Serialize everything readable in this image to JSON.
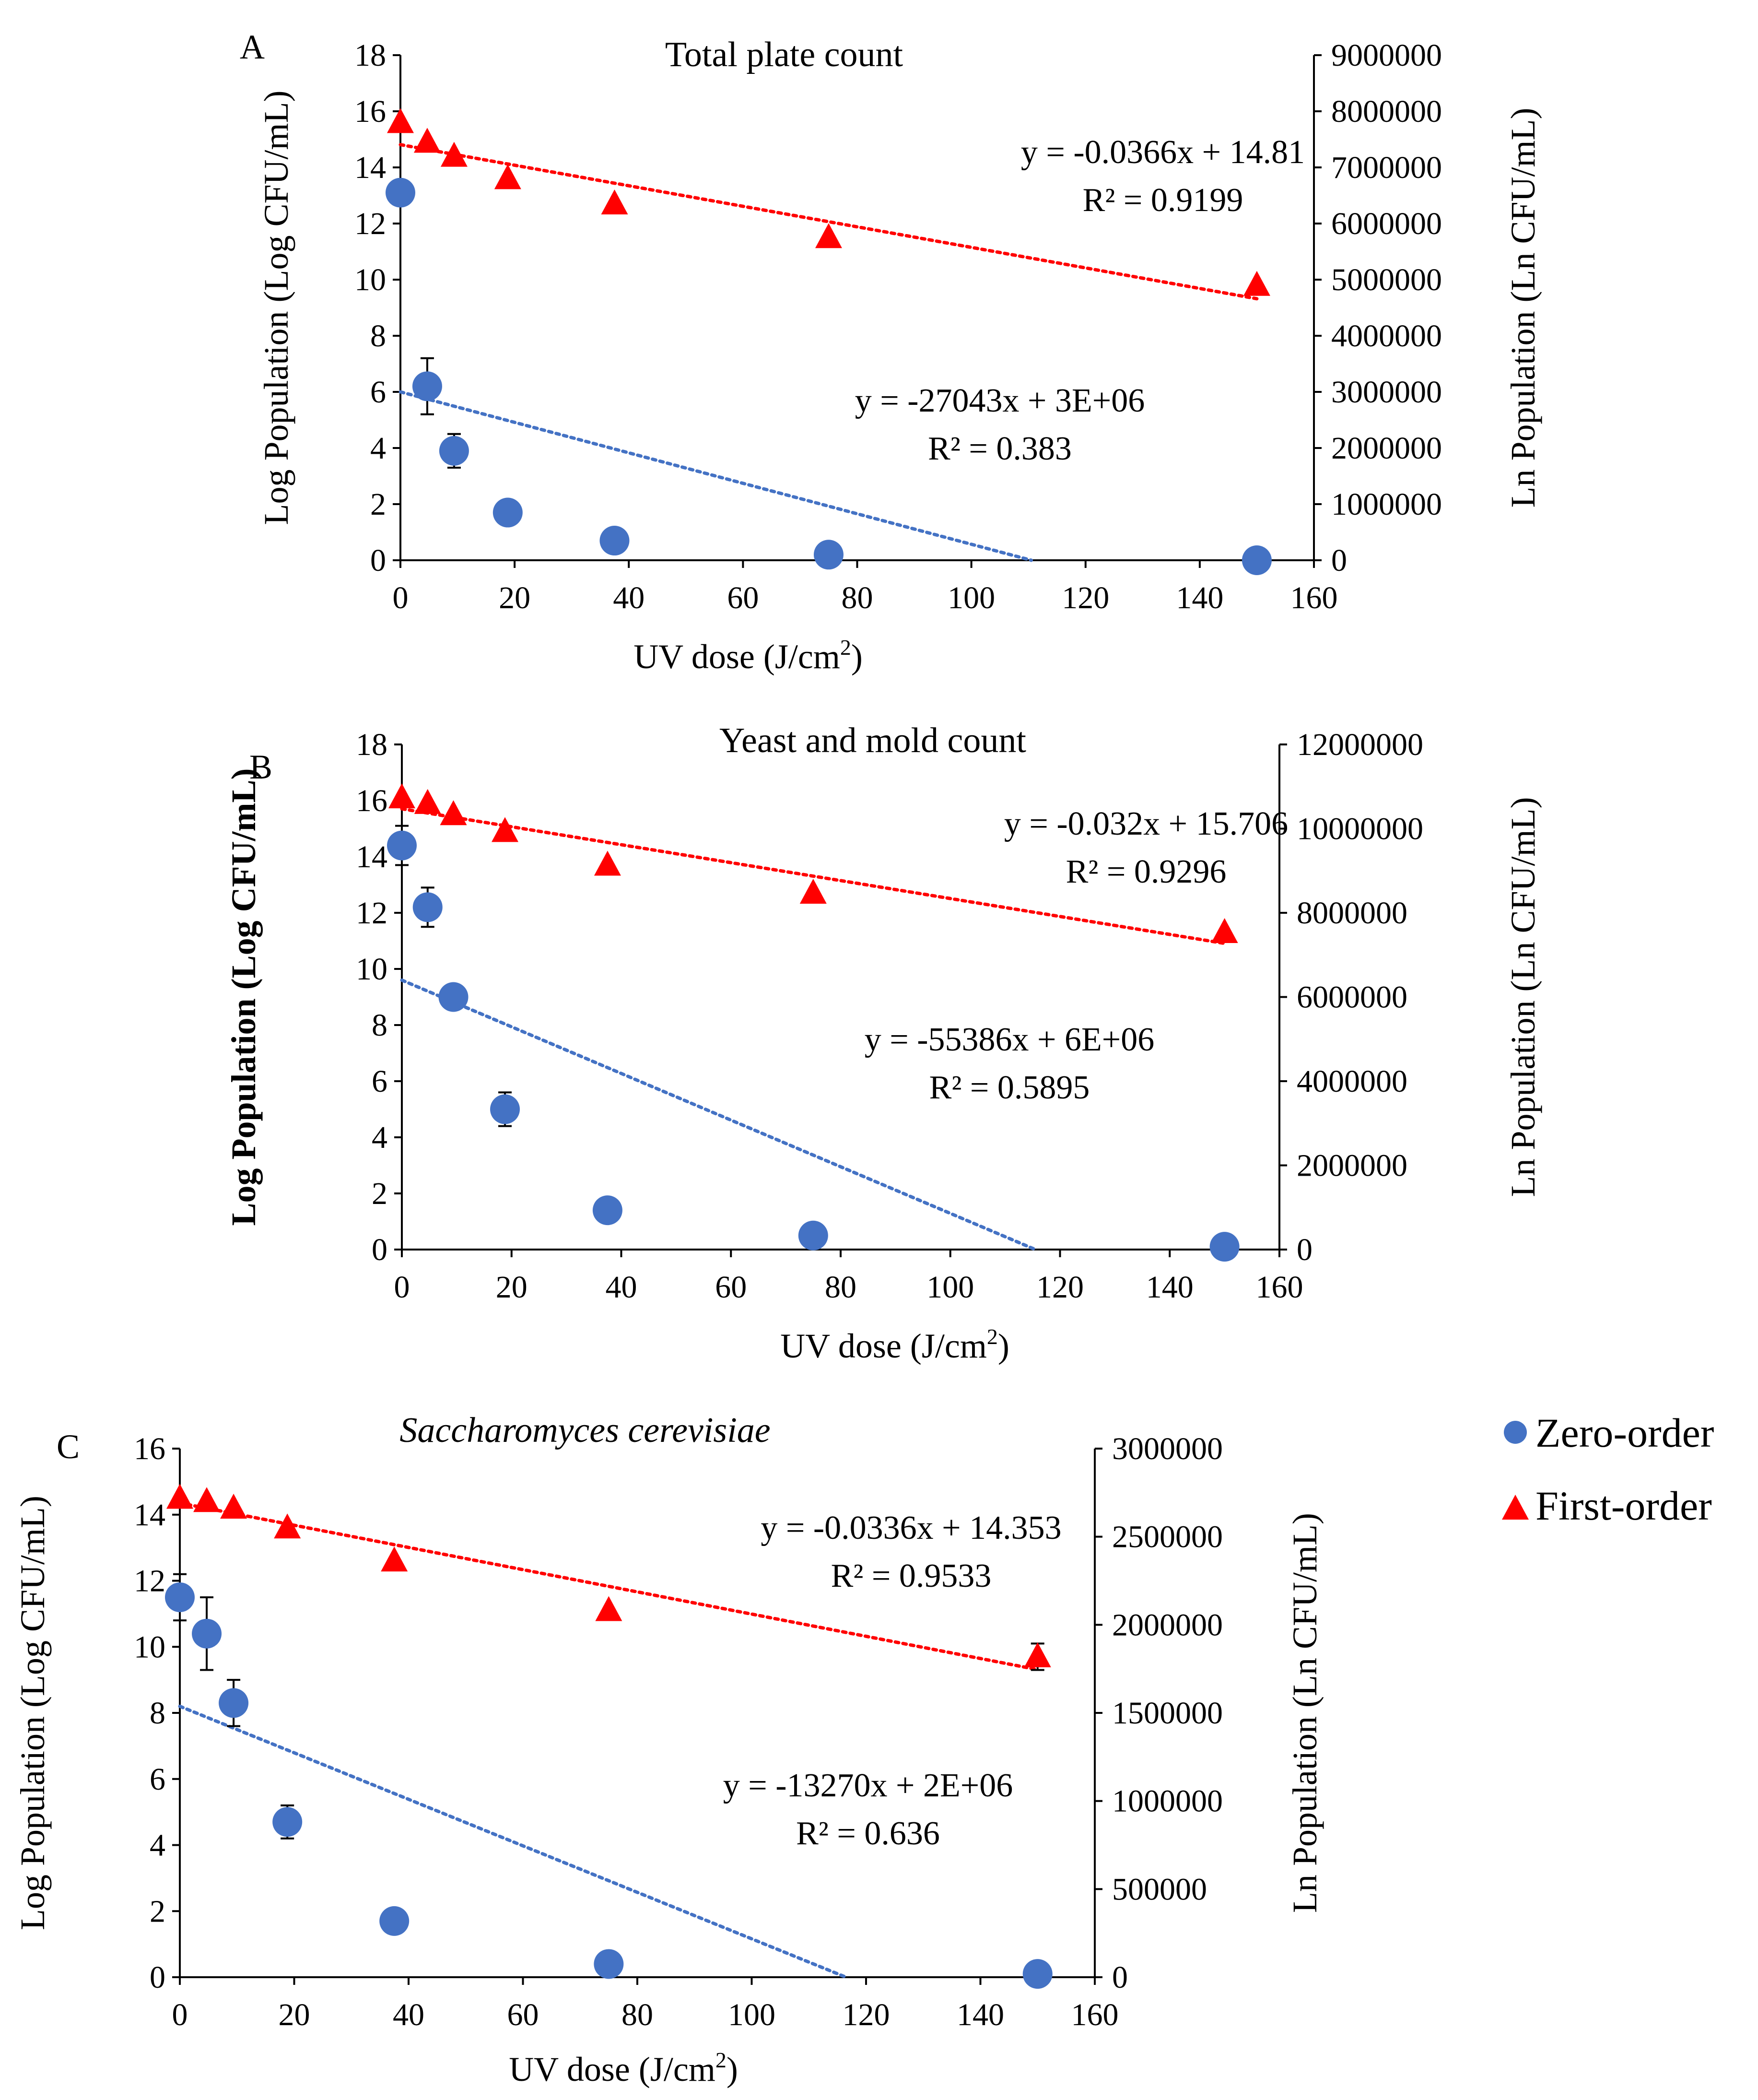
{
  "legend": {
    "zero_label": "Zero-order",
    "first_label": "First-order"
  },
  "colors": {
    "zero": "#4472C4",
    "first": "#FF0000"
  },
  "chart_data": [
    {
      "type": "scatter",
      "panel": "A",
      "title": "Total plate count",
      "title_italic": false,
      "xlabel": "UV dose (J/cm2)",
      "ylabel_left": "Log Population (Log CFU/mL)",
      "ylabel_right": "Ln Population (Ln CFU/mL)",
      "xlim": [
        0,
        160
      ],
      "xticks": [
        0,
        20,
        40,
        60,
        80,
        100,
        120,
        140,
        160
      ],
      "ylim_left": [
        0,
        18
      ],
      "yticks_left": [
        0,
        2,
        4,
        6,
        8,
        10,
        12,
        14,
        16,
        18
      ],
      "ylim_right": [
        0,
        9000000
      ],
      "yticks_right": [
        0,
        1000000,
        2000000,
        3000000,
        4000000,
        5000000,
        6000000,
        7000000,
        8000000,
        9000000
      ],
      "zero_order": {
        "name": "Zero-order",
        "axis": "left",
        "x": [
          0,
          4.7,
          9.4,
          18.8,
          37.5,
          75,
          150
        ],
        "y": [
          13.1,
          6.2,
          3.9,
          1.7,
          0.7,
          0.2,
          0.0
        ],
        "err": [
          0,
          1.0,
          0.6,
          0,
          0,
          0,
          0
        ]
      },
      "first_order": {
        "name": "First-order",
        "axis": "left",
        "x": [
          0,
          4.7,
          9.4,
          18.8,
          37.5,
          75,
          150
        ],
        "y": [
          15.6,
          14.9,
          14.4,
          13.6,
          12.7,
          11.5,
          9.8
        ],
        "err": [
          0,
          0,
          0,
          0,
          0,
          0,
          0
        ]
      },
      "zero_trend": {
        "x0": 0,
        "y0": 6.0,
        "x1": 110.5,
        "y1": 0
      },
      "first_trend": {
        "x0": 0,
        "y0": 14.81,
        "x1": 150,
        "y1": 9.32
      },
      "zero_eq": "y = -27043x + 3E+06",
      "zero_r2": "R² = 0.383",
      "first_eq": "y = -0.0366x + 14.81",
      "first_r2": "R² = 0.9199"
    },
    {
      "type": "scatter",
      "panel": "B",
      "title": "Yeast and mold count",
      "title_italic": false,
      "xlabel": "UV dose (J/cm2)",
      "ylabel_left": "Log Population (Log CFU/mL)",
      "ylabel_right": "Ln Population (Ln CFU/mL)",
      "xlim": [
        0,
        160
      ],
      "xticks": [
        0,
        20,
        40,
        60,
        80,
        100,
        120,
        140,
        160
      ],
      "ylim_left": [
        0,
        18
      ],
      "yticks_left": [
        0,
        2,
        4,
        6,
        8,
        10,
        12,
        14,
        16,
        18
      ],
      "ylim_right": [
        0,
        12000000
      ],
      "yticks_right": [
        0,
        2000000,
        4000000,
        6000000,
        8000000,
        10000000,
        12000000
      ],
      "zero_order": {
        "name": "Zero-order",
        "axis": "left",
        "x": [
          0,
          4.7,
          9.4,
          18.8,
          37.5,
          75,
          150
        ],
        "y": [
          14.4,
          12.2,
          9.0,
          5.0,
          1.4,
          0.5,
          0.1
        ],
        "err": [
          0.7,
          0.7,
          0,
          0.6,
          0,
          0,
          0
        ]
      },
      "first_order": {
        "name": "First-order",
        "axis": "left",
        "x": [
          0,
          4.7,
          9.4,
          18.8,
          37.5,
          75,
          150
        ],
        "y": [
          16.1,
          15.9,
          15.5,
          14.9,
          13.7,
          12.7,
          11.3
        ],
        "err": [
          0,
          0,
          0,
          0,
          0,
          0,
          0
        ]
      },
      "zero_trend": {
        "x0": 0,
        "y0": 9.6,
        "x1": 115.5,
        "y1": 0
      },
      "first_trend": {
        "x0": 0,
        "y0": 15.706,
        "x1": 150,
        "y1": 10.91
      },
      "zero_eq": "y = -55386x + 6E+06",
      "zero_r2": "R² = 0.5895",
      "first_eq": "y = -0.032x + 15.706",
      "first_r2": "R² = 0.9296"
    },
    {
      "type": "scatter",
      "panel": "C",
      "title": "Saccharomyces cerevisiae",
      "title_italic": true,
      "xlabel": "UV dose (J/cm2)",
      "ylabel_left": "Log Population (Log CFU/mL)",
      "ylabel_right": "Ln Population (Ln CFU/mL)",
      "xlim": [
        0,
        160
      ],
      "xticks": [
        0,
        20,
        40,
        60,
        80,
        100,
        120,
        140,
        160
      ],
      "ylim_left": [
        0,
        16
      ],
      "yticks_left": [
        0,
        2,
        4,
        6,
        8,
        10,
        12,
        14,
        16
      ],
      "ylim_right": [
        0,
        3000000
      ],
      "yticks_right": [
        0,
        500000,
        1000000,
        1500000,
        2000000,
        2500000,
        3000000
      ],
      "zero_order": {
        "name": "Zero-order",
        "axis": "left",
        "x": [
          0,
          4.7,
          9.4,
          18.8,
          37.5,
          75,
          150
        ],
        "y": [
          11.5,
          10.4,
          8.3,
          4.7,
          1.7,
          0.4,
          0.1
        ],
        "err": [
          0.7,
          1.1,
          0.7,
          0.5,
          0,
          0,
          0
        ]
      },
      "first_order": {
        "name": "First-order",
        "axis": "left",
        "x": [
          0,
          4.7,
          9.4,
          18.8,
          37.5,
          75,
          150
        ],
        "y": [
          14.5,
          14.4,
          14.2,
          13.6,
          12.6,
          11.1,
          9.7
        ],
        "err": [
          0,
          0,
          0,
          0,
          0,
          0,
          0.4
        ]
      },
      "zero_trend": {
        "x0": 0,
        "y0": 8.2,
        "x1": 116.5,
        "y1": 0
      },
      "first_trend": {
        "x0": 0,
        "y0": 14.353,
        "x1": 150,
        "y1": 9.31
      },
      "zero_eq": "y = -13270x + 2E+06",
      "zero_r2": "R² = 0.636",
      "first_eq": "y = -0.0336x + 14.353",
      "first_r2": "R² = 0.9533"
    }
  ]
}
